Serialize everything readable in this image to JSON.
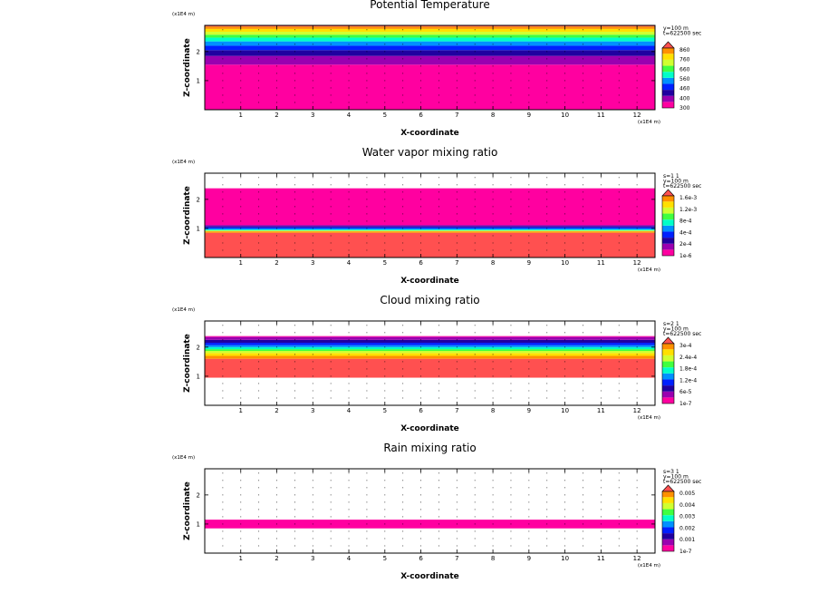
{
  "chart_data": [
    {
      "type": "heatmap",
      "title": "Potential Temperature",
      "xlabel": "X-coordinate",
      "ylabel": "Z-coordinate",
      "x_unit": "(x1E4 m)",
      "y_unit": "(x1E4 m)",
      "xlim": [
        0,
        12.5
      ],
      "ylim": [
        0,
        2.9
      ],
      "x_ticks": [
        "1",
        "2",
        "3",
        "4",
        "5",
        "6",
        "7",
        "8",
        "9",
        "10",
        "11",
        "12"
      ],
      "y_ticks": [
        "1",
        "2"
      ],
      "info": [
        "y=100 m",
        "t=622500 sec"
      ],
      "colorbar": {
        "labels": [
          "300",
          "400",
          "460",
          "560",
          "660",
          "760",
          "860"
        ],
        "colors": [
          "#ff00a0",
          "#9a00b0",
          "#2000a0",
          "#0020ff",
          "#0090ff",
          "#00ffc8",
          "#40ff40",
          "#d0ff30",
          "#ffe000",
          "#ff9000",
          "#ff5050"
        ]
      },
      "bands": [
        {
          "z": [
            0,
            1.55
          ],
          "color": "#ff00a0"
        },
        {
          "z": [
            1.55,
            1.85
          ],
          "color": "#9a00b0"
        },
        {
          "z": [
            1.85,
            2.05
          ],
          "color": "#2000a0"
        },
        {
          "z": [
            2.05,
            2.2
          ],
          "color": "#0020ff"
        },
        {
          "z": [
            2.2,
            2.35
          ],
          "color": "#0090ff"
        },
        {
          "z": [
            2.35,
            2.48
          ],
          "color": "#00ffc8"
        },
        {
          "z": [
            2.48,
            2.58
          ],
          "color": "#40ff40"
        },
        {
          "z": [
            2.58,
            2.68
          ],
          "color": "#d0ff30"
        },
        {
          "z": [
            2.68,
            2.78
          ],
          "color": "#ffe000"
        },
        {
          "z": [
            2.78,
            2.86
          ],
          "color": "#ff9000"
        },
        {
          "z": [
            2.86,
            2.9
          ],
          "color": "#ff5050"
        }
      ],
      "blobs": []
    },
    {
      "type": "heatmap",
      "title": "Water vapor mixing ratio",
      "xlabel": "X-coordinate",
      "ylabel": "Z-coordinate",
      "x_unit": "(x1E4 m)",
      "y_unit": "(x1E4 m)",
      "xlim": [
        0,
        12.5
      ],
      "ylim": [
        0,
        2.9
      ],
      "x_ticks": [
        "1",
        "2",
        "3",
        "4",
        "5",
        "6",
        "7",
        "8",
        "9",
        "10",
        "11",
        "12"
      ],
      "y_ticks": [
        "1",
        "2"
      ],
      "info": [
        "s=1 1",
        "y=100 m",
        "t=622500 sec"
      ],
      "colorbar": {
        "labels": [
          "1e-6",
          "2e-4",
          "4e-4",
          "8e-4",
          "1.2e-3",
          "1.6e-3"
        ],
        "colors": [
          "#ff00a0",
          "#9a00b0",
          "#2000a0",
          "#0020ff",
          "#0090ff",
          "#00ffc8",
          "#40ff40",
          "#d0ff30",
          "#ffe000",
          "#ff9000",
          "#ff5050"
        ]
      },
      "bands": [
        {
          "z": [
            0,
            0.85
          ],
          "color": "#ff5050"
        },
        {
          "z": [
            0.85,
            0.9
          ],
          "color": "#ff9000"
        },
        {
          "z": [
            0.9,
            0.93
          ],
          "color": "#d0ff30"
        },
        {
          "z": [
            0.93,
            0.96
          ],
          "color": "#00ffc8"
        },
        {
          "z": [
            0.96,
            1.0
          ],
          "color": "#0090ff"
        },
        {
          "z": [
            1.0,
            1.04
          ],
          "color": "#0020ff"
        },
        {
          "z": [
            1.04,
            1.08
          ],
          "color": "#2000a0"
        },
        {
          "z": [
            1.08,
            1.12
          ],
          "color": "#9a00b0"
        },
        {
          "z": [
            1.12,
            2.38
          ],
          "color": "#ff00a0"
        }
      ],
      "blobs": []
    },
    {
      "type": "heatmap",
      "title": "Cloud mixing ratio",
      "xlabel": "X-coordinate",
      "ylabel": "Z-coordinate",
      "x_unit": "(x1E4 m)",
      "y_unit": "(x1E4 m)",
      "xlim": [
        0,
        12.5
      ],
      "ylim": [
        0,
        2.9
      ],
      "x_ticks": [
        "1",
        "2",
        "3",
        "4",
        "5",
        "6",
        "7",
        "8",
        "9",
        "10",
        "11",
        "12"
      ],
      "y_ticks": [
        "1",
        "2"
      ],
      "info": [
        "s=2 1",
        "y=100 m",
        "t=622500 sec"
      ],
      "colorbar": {
        "labels": [
          "1e-7",
          "6e-5",
          "1.2e-4",
          "1.8e-4",
          "2.4e-4",
          "3e-4"
        ],
        "colors": [
          "#ff00a0",
          "#9a00b0",
          "#2000a0",
          "#0020ff",
          "#0090ff",
          "#00ffc8",
          "#40ff40",
          "#d0ff30",
          "#ffe000",
          "#ff9000",
          "#ff5050"
        ]
      },
      "bands": [
        {
          "z": [
            0.95,
            1.6
          ],
          "color": "#ff5050"
        },
        {
          "z": [
            1.6,
            1.7
          ],
          "color": "#ff9000"
        },
        {
          "z": [
            1.7,
            1.8
          ],
          "color": "#ffe000"
        },
        {
          "z": [
            1.8,
            1.87
          ],
          "color": "#d0ff30"
        },
        {
          "z": [
            1.87,
            1.93
          ],
          "color": "#40ff40"
        },
        {
          "z": [
            1.93,
            2.0
          ],
          "color": "#00ffc8"
        },
        {
          "z": [
            2.0,
            2.07
          ],
          "color": "#0090ff"
        },
        {
          "z": [
            2.07,
            2.15
          ],
          "color": "#0020ff"
        },
        {
          "z": [
            2.15,
            2.25
          ],
          "color": "#2000a0"
        },
        {
          "z": [
            2.25,
            2.35
          ],
          "color": "#9a00b0"
        },
        {
          "z": [
            2.35,
            2.38
          ],
          "color": "#ff00a0"
        }
      ],
      "blobs": []
    },
    {
      "type": "heatmap",
      "title": "Rain mixing ratio",
      "xlabel": "X-coordinate",
      "ylabel": "Z-coordinate",
      "x_unit": "(x1E4 m)",
      "y_unit": "(x1E4 m)",
      "xlim": [
        0,
        12.5
      ],
      "ylim": [
        0,
        2.9
      ],
      "x_ticks": [
        "1",
        "2",
        "3",
        "4",
        "5",
        "6",
        "7",
        "8",
        "9",
        "10",
        "11",
        "12"
      ],
      "y_ticks": [
        "1",
        "2"
      ],
      "info": [
        "s=3 1",
        "y=100 m",
        "t=622500 sec"
      ],
      "colorbar": {
        "labels": [
          "1e-7",
          "0.001",
          "0.002",
          "0.003",
          "0.004",
          "0.005"
        ],
        "colors": [
          "#ff00a0",
          "#9a00b0",
          "#2000a0",
          "#0020ff",
          "#0090ff",
          "#00ffc8",
          "#40ff40",
          "#d0ff30",
          "#ffe000",
          "#ff9000",
          "#ff5050"
        ]
      },
      "bands": [
        {
          "z": [
            0.85,
            1.15
          ],
          "color": "#ff00a0"
        }
      ],
      "blobs": []
    }
  ]
}
